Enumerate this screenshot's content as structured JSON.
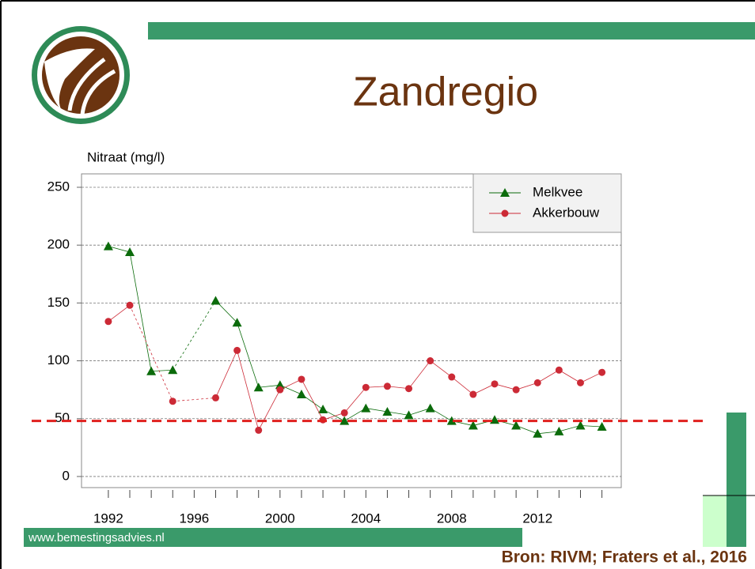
{
  "chart_data": {
    "type": "line",
    "title": "Zandregio",
    "y_label": "Nitraat (mg/l)",
    "x": [
      1992,
      1993,
      1994,
      1995,
      1996,
      1997,
      1998,
      1999,
      2000,
      2001,
      2002,
      2003,
      2004,
      2005,
      2006,
      2007,
      2008,
      2009,
      2010,
      2011,
      2012,
      2013,
      2014,
      2015
    ],
    "series": [
      {
        "name": "Melkvee",
        "color": "#0b6b0b",
        "marker": "triangle",
        "values": [
          199,
          194,
          91,
          92,
          null,
          152,
          133,
          77,
          79,
          71,
          58,
          48,
          59,
          56,
          53,
          59,
          48,
          44,
          49,
          44,
          37,
          39,
          44,
          43
        ]
      },
      {
        "name": "Akkerbouw",
        "color": "#cc2a36",
        "marker": "circle",
        "values": [
          134,
          148,
          null,
          65,
          null,
          68,
          109,
          40,
          75,
          84,
          49,
          55,
          77,
          78,
          76,
          100,
          86,
          71,
          80,
          75,
          81,
          92,
          81,
          90
        ]
      }
    ],
    "xlim": [
      1990.75,
      2015.9
    ],
    "xticks": [
      1992,
      1996,
      2000,
      2004,
      2008,
      2012
    ],
    "ylim": [
      -9.6,
      261.6
    ],
    "yticks": [
      0,
      50,
      100,
      150,
      200,
      250
    ],
    "grid": true,
    "reference_line": 48,
    "reference_color": "#e0201e",
    "legend": "upper right"
  },
  "footer": {
    "website": "www.bemestingsadvies.nl",
    "source": "Bron: RIVM; Fraters et al., 2016"
  }
}
